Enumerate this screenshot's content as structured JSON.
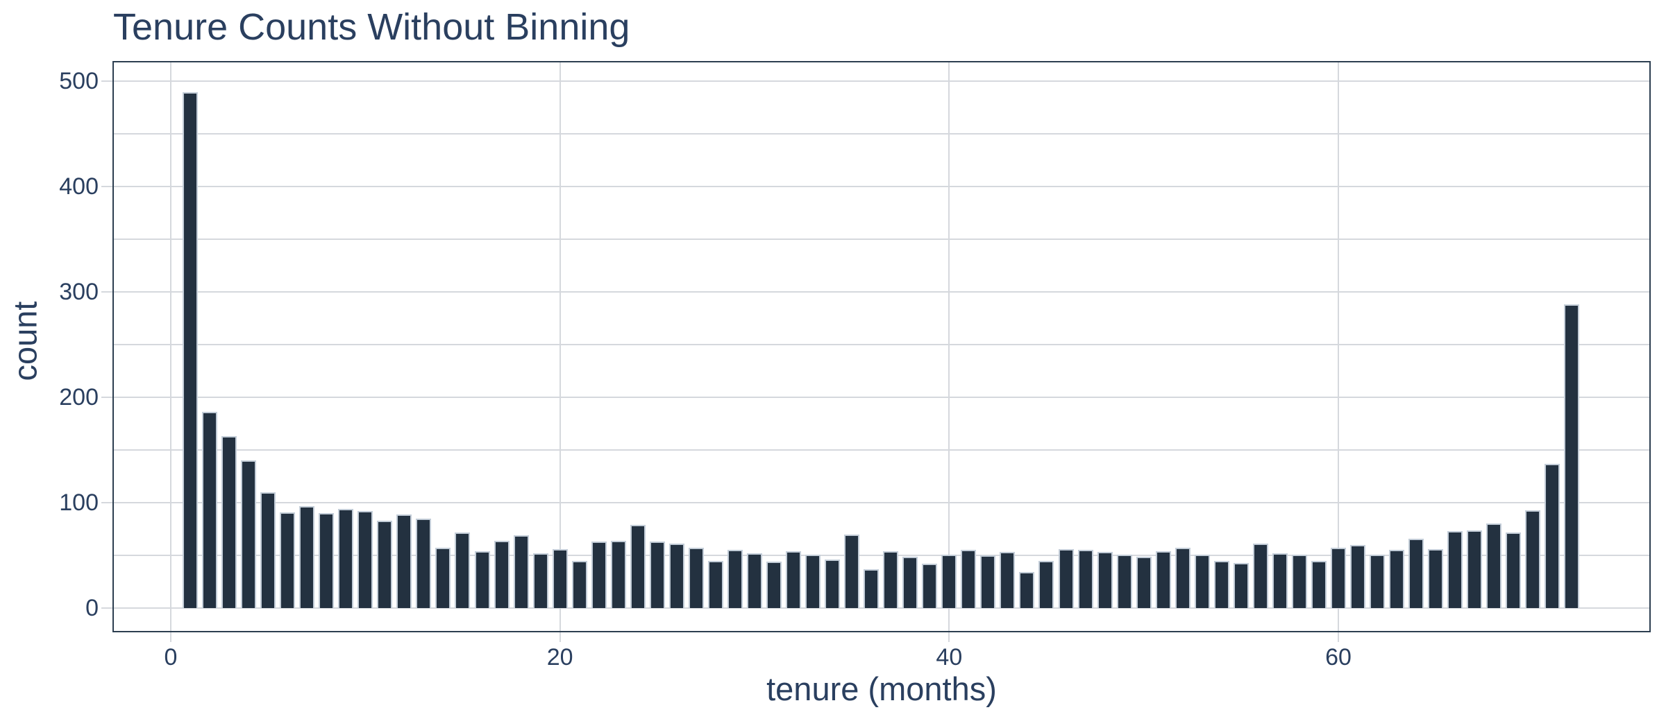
{
  "chart_data": {
    "type": "bar",
    "title": "Tenure Counts Without Binning",
    "xlabel": "tenure (months)",
    "ylabel": "count",
    "x": [
      1,
      2,
      3,
      4,
      5,
      6,
      7,
      8,
      9,
      10,
      11,
      12,
      13,
      14,
      15,
      16,
      17,
      18,
      19,
      20,
      21,
      22,
      23,
      24,
      25,
      26,
      27,
      28,
      29,
      30,
      31,
      32,
      33,
      34,
      35,
      36,
      37,
      38,
      39,
      40,
      41,
      42,
      43,
      44,
      45,
      46,
      47,
      48,
      49,
      50,
      51,
      52,
      53,
      54,
      55,
      56,
      57,
      58,
      59,
      60,
      61,
      62,
      63,
      64,
      65,
      66,
      67,
      68,
      69,
      70,
      71,
      72
    ],
    "values": [
      490,
      186,
      163,
      140,
      110,
      91,
      97,
      90,
      94,
      92,
      83,
      89,
      85,
      57,
      72,
      54,
      64,
      69,
      52,
      56,
      45,
      63,
      64,
      79,
      63,
      61,
      57,
      45,
      55,
      52,
      44,
      54,
      51,
      46,
      70,
      37,
      54,
      49,
      42,
      51,
      55,
      50,
      53,
      34,
      45,
      56,
      55,
      53,
      51,
      49,
      54,
      57,
      51,
      45,
      43,
      61,
      52,
      51,
      45,
      57,
      60,
      51,
      55,
      66,
      56,
      73,
      74,
      80,
      72,
      93,
      137,
      288
    ],
    "xticks": [
      0,
      20,
      40,
      60
    ],
    "yticks": [
      0,
      100,
      200,
      300,
      400,
      500
    ],
    "ygrid_step": 50,
    "xlim": [
      -3,
      76.1
    ],
    "ylim": [
      -23,
      519
    ],
    "grid": true,
    "legend": false,
    "colors": {
      "background": "#ffffff",
      "bar_fill": "#233140",
      "bar_edge": "#c3cdd8",
      "grid": "#d5d8dd",
      "spine": "#2c3e50",
      "text": "#2a3f5f"
    }
  }
}
